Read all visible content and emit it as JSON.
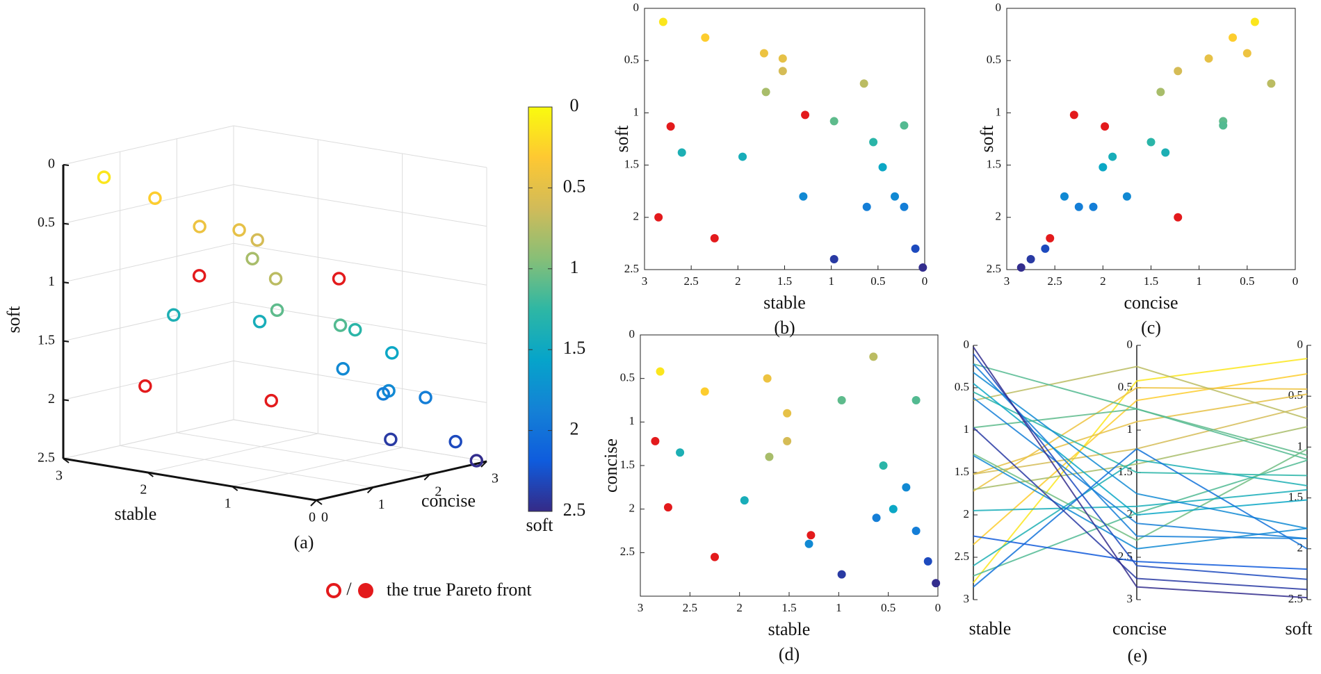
{
  "points": {
    "stable": [
      2.8,
      2.35,
      1.72,
      1.52,
      1.52,
      1.7,
      0.65,
      2.72,
      1.28,
      0.97,
      0.22,
      2.6,
      1.95,
      0.55,
      0.45,
      1.3,
      0.32,
      0.62,
      0.22,
      2.85,
      2.25,
      0.97,
      0.1,
      0.02
    ],
    "concise": [
      0.42,
      0.65,
      0.5,
      0.9,
      1.22,
      1.4,
      0.25,
      1.98,
      2.3,
      0.75,
      0.75,
      1.35,
      1.9,
      1.5,
      2.0,
      2.4,
      1.75,
      2.1,
      2.25,
      1.22,
      2.55,
      2.75,
      2.6,
      2.85
    ],
    "soft": [
      0.13,
      0.28,
      0.43,
      0.48,
      0.6,
      0.8,
      0.72,
      1.13,
      1.02,
      1.08,
      1.12,
      1.38,
      1.42,
      1.28,
      1.52,
      1.8,
      1.8,
      1.9,
      1.9,
      2.0,
      2.2,
      2.4,
      2.3,
      2.48
    ],
    "pareto": [
      false,
      false,
      false,
      false,
      false,
      false,
      false,
      true,
      true,
      false,
      false,
      false,
      false,
      false,
      false,
      false,
      false,
      false,
      false,
      true,
      true,
      false,
      false,
      false
    ]
  },
  "chart_data": [
    {
      "type": "scatter3d",
      "label": "(a)",
      "x_label": "stable",
      "y_label": "concise",
      "z_label": "soft",
      "xlim": [
        0,
        3
      ],
      "xticks": [
        0,
        1,
        2,
        3
      ],
      "ylim": [
        0,
        3
      ],
      "yticks": [
        0,
        1,
        2,
        3
      ],
      "zlim": [
        2.5,
        0
      ],
      "zticks": [
        0,
        0.5,
        1,
        1.5,
        2,
        2.5
      ],
      "grid": true,
      "colorbar": {
        "label": "soft",
        "clim": [
          2.5,
          0
        ],
        "ticks": [
          0,
          0.5,
          1,
          1.5,
          2,
          2.5
        ],
        "colors": [
          "#352a87",
          "#0f5cdd",
          "#1481d6",
          "#06a4ca",
          "#2eb7a4",
          "#87bf77",
          "#d1bb59",
          "#fec832",
          "#f9fb0e"
        ]
      },
      "legend": {
        "separator": "/",
        "text": "the true Pareto front",
        "color": "#e31a1c"
      }
    },
    {
      "type": "scatter",
      "label": "(b)",
      "x_label": "stable",
      "y_label": "soft",
      "xlim": [
        3,
        0
      ],
      "xticks": [
        3,
        2.5,
        2,
        1.5,
        1,
        0.5,
        0
      ],
      "ylim": [
        2.5,
        0
      ],
      "yticks": [
        0,
        0.5,
        1,
        1.5,
        2,
        2.5
      ]
    },
    {
      "type": "scatter",
      "label": "(c)",
      "x_label": "concise",
      "y_label": "soft",
      "xlim": [
        3,
        0
      ],
      "xticks": [
        3,
        2.5,
        2,
        1.5,
        1,
        0.5,
        0
      ],
      "ylim": [
        2.5,
        0
      ],
      "yticks": [
        0,
        0.5,
        1,
        1.5,
        2,
        2.5
      ]
    },
    {
      "type": "scatter",
      "label": "(d)",
      "x_label": "stable",
      "y_label": "concise",
      "xlim": [
        3,
        0
      ],
      "xticks": [
        3,
        2.5,
        2,
        1.5,
        1,
        0.5,
        0
      ],
      "ylim": [
        3,
        0
      ],
      "yticks": [
        0,
        0.5,
        1,
        1.5,
        2,
        2.5
      ]
    },
    {
      "type": "parallel",
      "label": "(e)",
      "axes": [
        {
          "label": "stable",
          "lim": [
            3,
            0
          ],
          "ticks": [
            0,
            0.5,
            1,
            1.5,
            2,
            2.5,
            3
          ]
        },
        {
          "label": "concise",
          "lim": [
            3,
            0
          ],
          "ticks": [
            0,
            0.5,
            1,
            1.5,
            2,
            2.5,
            3
          ]
        },
        {
          "label": "soft",
          "lim": [
            2.5,
            0
          ],
          "ticks": [
            0,
            0.5,
            1,
            1.5,
            2,
            2.5
          ]
        }
      ]
    }
  ]
}
